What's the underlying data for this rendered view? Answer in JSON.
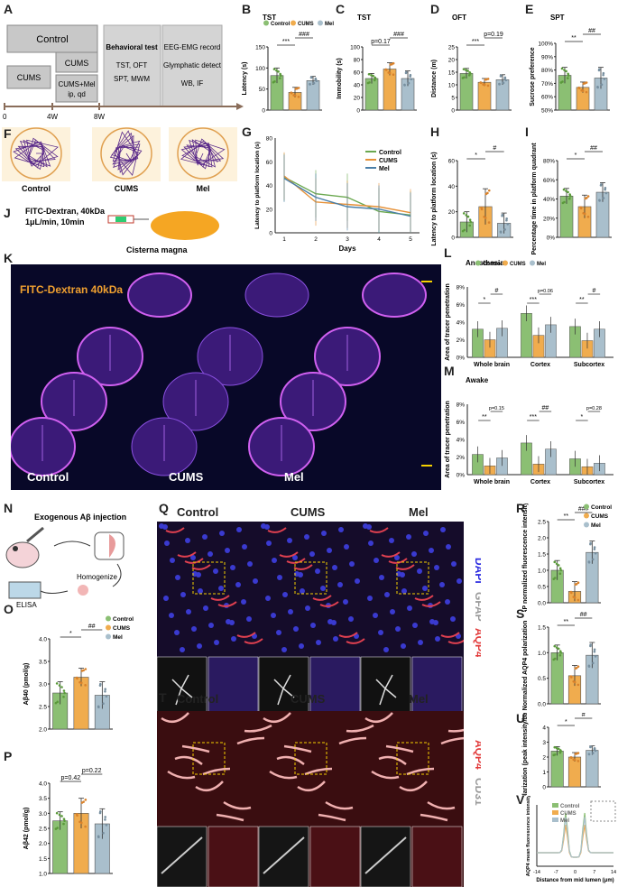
{
  "panel_letters": [
    "A",
    "B",
    "C",
    "D",
    "E",
    "F",
    "G",
    "H",
    "I",
    "J",
    "K",
    "L",
    "M",
    "N",
    "O",
    "P",
    "Q",
    "R",
    "S",
    "T",
    "U",
    "V"
  ],
  "timeline": {
    "control": "Control",
    "cums": "CUMS",
    "cums2": "CUMS",
    "cums_mel": "CUMS+Mel",
    "cums_mel_dose": "ip, qd",
    "behavioral_title": "Behavioral test",
    "behavioral_items1": "TST, OFT",
    "behavioral_items2": "SPT, MWM",
    "eeg1": "EEG-EMG record",
    "eeg2": "Glymphatic detect",
    "eeg3": "WB, IF",
    "t0": "0",
    "t4": "4W",
    "t8": "8W"
  },
  "groups": [
    "Control",
    "CUMS",
    "Mel"
  ],
  "colors": {
    "control": "#8bbf73",
    "cums": "#f0ac4e",
    "mel": "#a9bfcc",
    "red": "#e23b3b",
    "purple": "#5a2a8a",
    "brain_bg": "#0b0a2a",
    "brain": "#7a3fd0"
  },
  "F": {
    "labels": [
      "Control",
      "CUMS",
      "Mel"
    ]
  },
  "J": {
    "line1": "FITC-Dextran, 40kDa",
    "line2": "1μL/min, 10min",
    "cisterna": "Cisterna magna"
  },
  "K": {
    "title": "FITC-Dextran 40kDa",
    "labels": [
      "Control",
      "CUMS",
      "Mel"
    ]
  },
  "N": {
    "title": "Exogenous Aβ injection",
    "homogenize": "Homogenize",
    "elisa": "ELISA"
  },
  "Q": {
    "labels": [
      "Control",
      "CUMS",
      "Mel"
    ],
    "stain_dapi": "DAPI",
    "stain_gfap": "GFAP",
    "stain_aqp4": "AQP4"
  },
  "T": {
    "labels": [
      "Control",
      "CUMS",
      "Mel"
    ],
    "stain_aqp4": "AQP4",
    "stain_cd31": "CD31"
  },
  "chart_data": [
    {
      "id": "B",
      "type": "bar",
      "title": "TST",
      "ylabel": "Latency (s)",
      "ylim": [
        0,
        150
      ],
      "ticks": [
        0,
        50,
        100,
        150
      ],
      "categories": [
        "Control",
        "CUMS",
        "Mel"
      ],
      "values": [
        82,
        42,
        70
      ],
      "errors": [
        18,
        12,
        10
      ],
      "legend": [
        "Control",
        "CUMS",
        "Mel"
      ],
      "sig": [
        {
          "a": 0,
          "b": 1,
          "text": "***"
        },
        {
          "a": 1,
          "b": 2,
          "text": "###"
        }
      ]
    },
    {
      "id": "C",
      "type": "bar",
      "title": "TST",
      "ylabel": "Immobility (s)",
      "ylim": [
        0,
        100
      ],
      "ticks": [
        0,
        20,
        40,
        60,
        80,
        100
      ],
      "categories": [
        "Control",
        "CUMS",
        "Mel"
      ],
      "values": [
        50,
        65,
        50
      ],
      "errors": [
        8,
        10,
        12
      ],
      "sig": [
        {
          "a": 0,
          "b": 1,
          "text": "p=0.17"
        },
        {
          "a": 1,
          "b": 2,
          "text": "###"
        }
      ]
    },
    {
      "id": "D",
      "type": "bar",
      "title": "OFT",
      "ylabel": "Distance (m)",
      "ylim": [
        0,
        25
      ],
      "ticks": [
        0,
        5,
        10,
        15,
        20,
        25
      ],
      "categories": [
        "Control",
        "CUMS",
        "Mel"
      ],
      "values": [
        14.5,
        11,
        12
      ],
      "errors": [
        2,
        1.5,
        2
      ],
      "sig": [
        {
          "a": 0,
          "b": 1,
          "text": "***"
        },
        {
          "a": 1,
          "b": 2,
          "text": "p=0.19"
        }
      ]
    },
    {
      "id": "E",
      "type": "bar",
      "title": "SPT",
      "ylabel": "Sucrose preference",
      "ylim": [
        50,
        100
      ],
      "ticks": [
        "50%",
        "60%",
        "70%",
        "80%",
        "90%",
        "100%"
      ],
      "tickvals": [
        50,
        60,
        70,
        80,
        90,
        100
      ],
      "categories": [
        "Control",
        "CUMS",
        "Mel"
      ],
      "values": [
        76,
        67,
        74
      ],
      "errors": [
        6,
        4,
        8
      ],
      "sig": [
        {
          "a": 0,
          "b": 1,
          "text": "**"
        },
        {
          "a": 1,
          "b": 2,
          "text": "##"
        }
      ]
    },
    {
      "id": "G",
      "type": "line",
      "xlabel": "Days",
      "ylabel": "Latency to platform location (s)",
      "ylim": [
        0,
        80
      ],
      "ticks": [
        0,
        20,
        40,
        60,
        80
      ],
      "x": [
        1,
        2,
        3,
        4,
        5
      ],
      "series": [
        {
          "name": "Control",
          "values": [
            47,
            33,
            30,
            18,
            15
          ]
        },
        {
          "name": "CUMS",
          "values": [
            48,
            26,
            24,
            22,
            17
          ]
        },
        {
          "name": "Mel",
          "values": [
            46,
            30,
            22,
            20,
            14
          ]
        }
      ]
    },
    {
      "id": "H",
      "type": "bar",
      "ylabel": "Latency to platform location (s)",
      "ylim": [
        0,
        60
      ],
      "ticks": [
        0,
        20,
        40,
        60
      ],
      "categories": [
        "Control",
        "CUMS",
        "Mel"
      ],
      "values": [
        12,
        24,
        11
      ],
      "errors": [
        8,
        14,
        8
      ],
      "sig": [
        {
          "a": 0,
          "b": 1,
          "text": "*"
        },
        {
          "a": 1,
          "b": 2,
          "text": "#"
        }
      ]
    },
    {
      "id": "I",
      "type": "bar",
      "ylabel": "Percentage time in platform quadrant",
      "ylim": [
        0,
        80
      ],
      "ticks": [
        "0%",
        "20%",
        "40%",
        "60%",
        "80%"
      ],
      "tickvals": [
        0,
        20,
        40,
        60,
        80
      ],
      "categories": [
        "Control",
        "CUMS",
        "Mel"
      ],
      "values": [
        43,
        32,
        47
      ],
      "errors": [
        8,
        12,
        10
      ],
      "sig": [
        {
          "a": 0,
          "b": 1,
          "text": "*"
        },
        {
          "a": 1,
          "b": 2,
          "text": "##"
        }
      ]
    },
    {
      "id": "L",
      "type": "grouped-bar",
      "title": "Anesthesia",
      "ylabel": "Area of tracer penetration",
      "ylim": [
        0,
        8
      ],
      "ticks": [
        "0%",
        "2%",
        "4%",
        "6%",
        "8%"
      ],
      "tickvals": [
        0,
        2,
        4,
        6,
        8
      ],
      "categories": [
        "Whole brain",
        "Cortex",
        "Subcortex"
      ],
      "series": [
        {
          "name": "Control",
          "values": [
            3.2,
            5.0,
            3.5
          ]
        },
        {
          "name": "CUMS",
          "values": [
            2.0,
            2.5,
            1.9
          ]
        },
        {
          "name": "Mel",
          "values": [
            3.3,
            3.7,
            3.2
          ]
        }
      ],
      "legend": [
        "Control",
        "CUMS",
        "Mel"
      ],
      "sig": [
        {
          "g": 0,
          "a": 0,
          "b": 1,
          "text": "*"
        },
        {
          "g": 0,
          "a": 1,
          "b": 2,
          "text": "#"
        },
        {
          "g": 1,
          "a": 0,
          "b": 1,
          "text": "***"
        },
        {
          "g": 1,
          "a": 1,
          "b": 2,
          "text": "p=0.06"
        },
        {
          "g": 2,
          "a": 0,
          "b": 1,
          "text": "**"
        },
        {
          "g": 2,
          "a": 1,
          "b": 2,
          "text": "#"
        }
      ]
    },
    {
      "id": "M",
      "type": "grouped-bar",
      "title": "Awake",
      "ylabel": "Area of tracer penetration",
      "ylim": [
        0,
        8
      ],
      "ticks": [
        "0%",
        "2%",
        "4%",
        "6%",
        "8%"
      ],
      "tickvals": [
        0,
        2,
        4,
        6,
        8
      ],
      "categories": [
        "Whole brain",
        "Cortex",
        "Subcortex"
      ],
      "series": [
        {
          "name": "Control",
          "values": [
            2.3,
            3.6,
            1.8
          ]
        },
        {
          "name": "CUMS",
          "values": [
            1.0,
            1.2,
            0.9
          ]
        },
        {
          "name": "Mel",
          "values": [
            1.9,
            2.9,
            1.3
          ]
        }
      ],
      "sig": [
        {
          "g": 0,
          "a": 0,
          "b": 1,
          "text": "**"
        },
        {
          "g": 0,
          "a": 1,
          "b": 2,
          "text": "p=0.15"
        },
        {
          "g": 1,
          "a": 0,
          "b": 1,
          "text": "***"
        },
        {
          "g": 1,
          "a": 1,
          "b": 2,
          "text": "##"
        },
        {
          "g": 2,
          "a": 0,
          "b": 1,
          "text": "*"
        },
        {
          "g": 2,
          "a": 1,
          "b": 2,
          "text": "p=0.28"
        }
      ]
    },
    {
      "id": "O",
      "type": "bar",
      "ylabel": "Aβ40 (pmol/g)",
      "ylim": [
        2.0,
        4.0
      ],
      "ticks": [
        "2.0",
        "2.5",
        "3.0",
        "3.5",
        "4.0"
      ],
      "tickvals": [
        2.0,
        2.5,
        3.0,
        3.5,
        4.0
      ],
      "categories": [
        "Control",
        "CUMS",
        "Mel"
      ],
      "values": [
        2.8,
        3.15,
        2.75
      ],
      "errors": [
        0.25,
        0.2,
        0.3
      ],
      "legend": [
        "Control",
        "CUMS",
        "Mel"
      ],
      "sig": [
        {
          "a": 0,
          "b": 1,
          "text": "*"
        },
        {
          "a": 1,
          "b": 2,
          "text": "##"
        }
      ]
    },
    {
      "id": "P",
      "type": "bar",
      "ylabel": "Aβ42 (pmol/g)",
      "ylim": [
        1.0,
        4.0
      ],
      "ticks": [
        "1.0",
        "1.5",
        "2.0",
        "2.5",
        "3.0",
        "3.5",
        "4.0"
      ],
      "tickvals": [
        1.0,
        1.5,
        2.0,
        2.5,
        3.0,
        3.5,
        4.0
      ],
      "categories": [
        "Control",
        "CUMS",
        "Mel"
      ],
      "values": [
        2.75,
        3.0,
        2.65
      ],
      "errors": [
        0.3,
        0.5,
        0.5
      ],
      "sig": [
        {
          "a": 0,
          "b": 1,
          "text": "p=0.42"
        },
        {
          "a": 1,
          "b": 2,
          "text": "p=0.22"
        }
      ]
    },
    {
      "id": "R",
      "type": "bar",
      "ylabel": "GFAP normalized fluorescence intensity",
      "ylim": [
        0,
        2.5
      ],
      "ticks": [
        "0.0",
        "0.5",
        "1.0",
        "1.5",
        "2.0",
        "2.5"
      ],
      "tickvals": [
        0,
        0.5,
        1.0,
        1.5,
        2.0,
        2.5
      ],
      "categories": [
        "Control",
        "CUMS",
        "Mel"
      ],
      "values": [
        1.0,
        0.35,
        1.55
      ],
      "errors": [
        0.3,
        0.3,
        0.35
      ],
      "legend": [
        "Control",
        "CUMS",
        "Mel"
      ],
      "sig": [
        {
          "a": 0,
          "b": 1,
          "text": "**"
        },
        {
          "a": 1,
          "b": 2,
          "text": "###"
        }
      ]
    },
    {
      "id": "S",
      "type": "bar",
      "ylabel": "Normalized AQP4 polarization",
      "ylim": [
        0,
        1.5
      ],
      "ticks": [
        "0.0",
        "0.5",
        "1.0",
        "1.5"
      ],
      "tickvals": [
        0,
        0.5,
        1.0,
        1.5
      ],
      "categories": [
        "Control",
        "CUMS",
        "Mel"
      ],
      "values": [
        1.0,
        0.55,
        0.95
      ],
      "errors": [
        0.15,
        0.2,
        0.25
      ],
      "sig": [
        {
          "a": 0,
          "b": 1,
          "text": "**"
        },
        {
          "a": 1,
          "b": 2,
          "text": "##"
        }
      ]
    },
    {
      "id": "U",
      "type": "bar",
      "ylabel": "AQP4 polarization (peak intensity/baseline)",
      "ylim": [
        0,
        4
      ],
      "ticks": [
        "0",
        "1",
        "2",
        "3",
        "4"
      ],
      "tickvals": [
        0,
        1,
        2,
        3,
        4
      ],
      "categories": [
        "Control",
        "CUMS",
        "Mel"
      ],
      "values": [
        2.4,
        2.0,
        2.45
      ],
      "errors": [
        0.3,
        0.3,
        0.3
      ],
      "sig": [
        {
          "a": 0,
          "b": 1,
          "text": "*"
        },
        {
          "a": 1,
          "b": 2,
          "text": "#"
        }
      ]
    },
    {
      "id": "V",
      "type": "line",
      "xlabel": "Distance from mid lumen (μm)",
      "ylabel": "AQP4 mean fluorescence intensity",
      "xticks": [
        "-14",
        "-7",
        "0",
        "7",
        "14"
      ],
      "legend": [
        "Control",
        "CUMS",
        "Mel"
      ]
    }
  ]
}
